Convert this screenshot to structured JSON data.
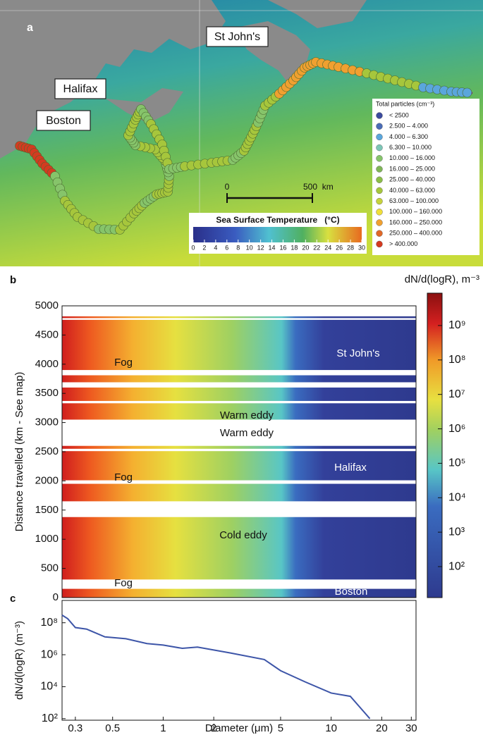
{
  "map": {
    "panel_label": "a",
    "places": [
      "St John's",
      "Halifax",
      "Boston"
    ],
    "scale_bar": [
      "0",
      "500  km"
    ],
    "sst_title": "Sea Surface Temperature   (°C)",
    "sst_lim": [
      0,
      30
    ],
    "sst_ticks": [
      0,
      2,
      4,
      6,
      8,
      10,
      12,
      14,
      16,
      18,
      20,
      22,
      24,
      26,
      28,
      30
    ],
    "legend_title": "Total particles (cm⁻³)",
    "legend": [
      {
        "label": "< 2500",
        "color": "#3b4b9e"
      },
      {
        "label": "2.500 – 4.000",
        "color": "#4a6cb6"
      },
      {
        "label": "4.000 – 6.300",
        "color": "#5aa6dc"
      },
      {
        "label": "6.300 – 10.000",
        "color": "#7cc6b6"
      },
      {
        "label": "10.000 – 16.000",
        "color": "#86c46a"
      },
      {
        "label": "16.000 – 25.000",
        "color": "#7fb556"
      },
      {
        "label": "25.000 – 40.000",
        "color": "#8bbd48"
      },
      {
        "label": "40.000 – 63.000",
        "color": "#a6c63c"
      },
      {
        "label": "63.000 – 100.000",
        "color": "#c6d23c"
      },
      {
        "label": "100.000 – 160.000",
        "color": "#f0de3a"
      },
      {
        "label": "160.000 – 250.000",
        "color": "#f0a030"
      },
      {
        "label": "250.000 – 400.000",
        "color": "#e06828"
      },
      {
        "label": "> 400.000",
        "color": "#d43a20"
      }
    ]
  },
  "chart_data": [
    {
      "type": "heatmap",
      "panel_label": "b",
      "ylabel": "Distance travelled (km - See map)",
      "ylim": [
        0,
        5000
      ],
      "yticks": [
        0,
        500,
        1000,
        1500,
        2000,
        2500,
        3000,
        3500,
        4000,
        4500,
        5000
      ],
      "xlim": [
        0.25,
        32
      ],
      "log_x": true,
      "rows": [
        [
          0,
          150
        ],
        [
          310,
          1380
        ],
        [
          1650,
          1950
        ],
        [
          2010,
          2510
        ],
        [
          2550,
          2600
        ],
        [
          3050,
          3330
        ],
        [
          3370,
          3600
        ],
        [
          3690,
          3810
        ],
        [
          3900,
          4760
        ],
        [
          4790,
          4820
        ]
      ],
      "colorbar_title": "dN/d(logR), m⁻³",
      "clim": [
        12.6,
        8700000000
      ],
      "cticks": [
        {
          "value": 100,
          "label": "10²"
        },
        {
          "value": 1000,
          "label": "10³"
        },
        {
          "value": 10000,
          "label": "10⁴"
        },
        {
          "value": 100000,
          "label": "10⁵"
        },
        {
          "value": 1000000,
          "label": "10⁶"
        },
        {
          "value": 10000000,
          "label": "10⁷"
        },
        {
          "value": 100000000,
          "label": "10⁸"
        },
        {
          "value": 1000000000,
          "label": "10⁹"
        }
      ],
      "annotations": [
        "Fog",
        "Warm eddy",
        "Warm eddy",
        "St John's",
        "Halifax",
        "Fog",
        "Cold eddy",
        "Fog",
        "Boston"
      ]
    },
    {
      "type": "line",
      "panel_label": "c",
      "xlabel": "Diameter (μm)",
      "ylabel": "dN/d(logR) (m⁻³)",
      "log_x": true,
      "log_y": true,
      "xlim": [
        0.25,
        32
      ],
      "xticks": [
        0.3,
        0.5,
        1,
        2,
        5,
        10,
        20,
        30
      ],
      "ylim": [
        80,
        2500000000
      ],
      "yticks": [
        {
          "value": 100,
          "label": "10²"
        },
        {
          "value": 10000,
          "label": "10⁴"
        },
        {
          "value": 1000000,
          "label": "10⁶"
        },
        {
          "value": 100000000,
          "label": "10⁸"
        }
      ],
      "series": [
        {
          "name": "dN/d(logR)",
          "color": "#3d55a8",
          "x": [
            0.25,
            0.27,
            0.3,
            0.35,
            0.45,
            0.6,
            0.8,
            1,
            1.3,
            1.6,
            2.5,
            4,
            5,
            7,
            10,
            13,
            17
          ],
          "values": [
            300000000,
            180000000,
            50000000,
            40000000,
            13000000,
            10000000,
            5000000,
            4000000,
            2500000,
            3000000,
            1300000,
            500000,
            100000,
            20000,
            4000,
            2500,
            100
          ]
        }
      ]
    }
  ]
}
